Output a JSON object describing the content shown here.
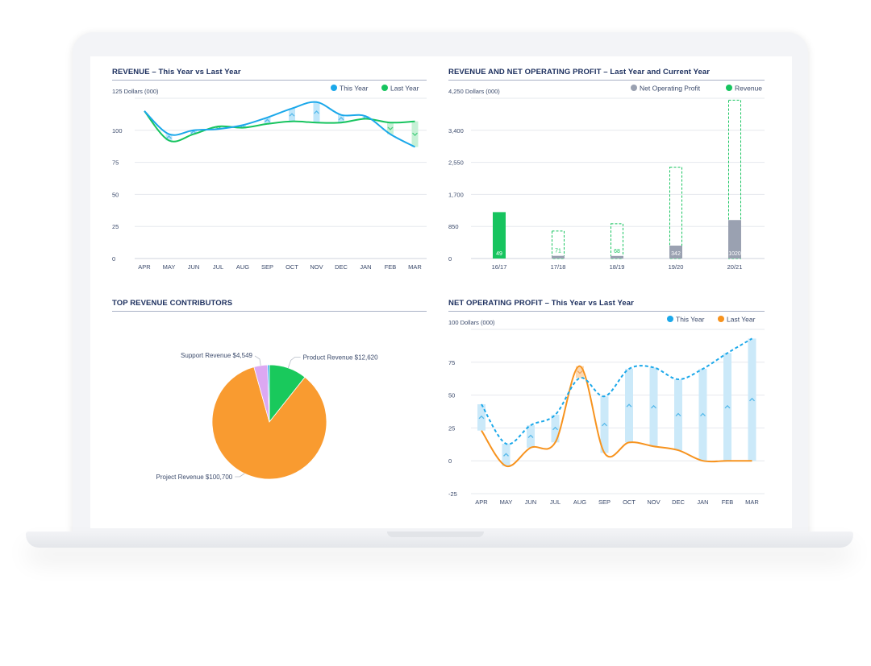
{
  "colors": {
    "this_year": "#1ba8ea",
    "last_year_green": "#17c45f",
    "last_year_orange": "#f7931e",
    "net_profit_gray": "#9aa1b1",
    "revenue_green": "#17c45f",
    "pie_orange": "#f99b30",
    "pie_green": "#19c95c",
    "pie_lilac": "#dca8f2",
    "pie_blue": "#1ba8ea",
    "title": "#1c2f5e"
  },
  "panels": {
    "revenue_trend": {
      "title": "REVENUE – This Year vs Last Year"
    },
    "revenue_profit": {
      "title": "REVENUE AND NET OPERATING PROFIT – Last Year and Current Year"
    },
    "top_contributors": {
      "title": "TOP REVENUE CONTRIBUTORS"
    },
    "profit_trend": {
      "title": "NET OPERATING PROFIT – This Year vs Last Year"
    }
  },
  "chart_data": [
    {
      "type": "line",
      "title": "REVENUE – This Year vs Last Year",
      "ylabel": "125 Dollars (000)",
      "ylim": [
        0,
        125
      ],
      "yticks": [
        0,
        25,
        50,
        75,
        100
      ],
      "grid": true,
      "legend": "top-right",
      "categories": [
        "APR",
        "MAY",
        "JUN",
        "JUL",
        "AUG",
        "SEP",
        "OCT",
        "NOV",
        "DEC",
        "JAN",
        "FEB",
        "MAR"
      ],
      "series": [
        {
          "name": "This Year",
          "color": "#1ba8ea",
          "values": [
            115,
            97,
            100,
            101,
            104,
            110,
            117,
            122,
            112,
            111,
            97,
            87
          ]
        },
        {
          "name": "Last Year",
          "color": "#17c45f",
          "values": [
            115,
            92,
            97,
            103,
            102,
            105,
            107,
            106,
            106,
            109,
            106,
            107
          ]
        }
      ]
    },
    {
      "type": "bar",
      "title": "REVENUE AND NET OPERATING PROFIT – Last Year and Current Year",
      "ylabel": "4,250 Dollars (000)",
      "ylim": [
        0,
        4250
      ],
      "yticks": [
        0,
        850,
        1700,
        2550,
        3400
      ],
      "ytick_labels": [
        "0",
        "850",
        "1,700",
        "2,550",
        "3,400"
      ],
      "grid": true,
      "legend": "top-right",
      "categories": [
        "16/17",
        "17/18",
        "18/19",
        "19/20",
        "20/21"
      ],
      "series": [
        {
          "name": "Net Operating Profit",
          "color": "#9aa1b1",
          "values": [
            49,
            71,
            68,
            342,
            1020
          ],
          "value_labels": [
            "49",
            "71",
            "68",
            "342",
            "1020"
          ]
        },
        {
          "name": "Revenue",
          "color": "#17c45f",
          "values": [
            1230,
            730,
            920,
            2420,
            4200
          ],
          "style": [
            "solid",
            "dashed",
            "dashed",
            "dashed",
            "dashed"
          ]
        }
      ]
    },
    {
      "type": "pie",
      "title": "TOP REVENUE CONTRIBUTORS",
      "slices": [
        {
          "label": "Product Revenue $12,620",
          "value": 12620,
          "color": "#19c95c"
        },
        {
          "label": "Project Revenue $100,700",
          "value": 100700,
          "color": "#f99b30"
        },
        {
          "label": "Support Revenue $4,549",
          "value": 4549,
          "color": "#dca8f2"
        },
        {
          "label": "",
          "value": 600,
          "color": "#1ba8ea"
        }
      ]
    },
    {
      "type": "line",
      "title": "NET OPERATING PROFIT – This Year vs Last Year",
      "ylabel": "100 Dollars (000)",
      "ylim": [
        -25,
        100
      ],
      "yticks": [
        -25,
        0,
        25,
        50,
        75
      ],
      "grid": true,
      "legend": "top-right",
      "categories": [
        "APR",
        "MAY",
        "JUN",
        "JUL",
        "AUG",
        "SEP",
        "OCT",
        "NOV",
        "DEC",
        "JAN",
        "FEB",
        "MAR"
      ],
      "series": [
        {
          "name": "This Year",
          "color": "#1ba8ea",
          "style": "dashed",
          "values": [
            43,
            13,
            27,
            35,
            63,
            49,
            70,
            71,
            62,
            70,
            82,
            93
          ]
        },
        {
          "name": "Last Year",
          "color": "#f7931e",
          "style": "solid",
          "values": [
            23,
            -4,
            10,
            14,
            72,
            6,
            14,
            11,
            8,
            0,
            0,
            0
          ]
        }
      ]
    }
  ]
}
